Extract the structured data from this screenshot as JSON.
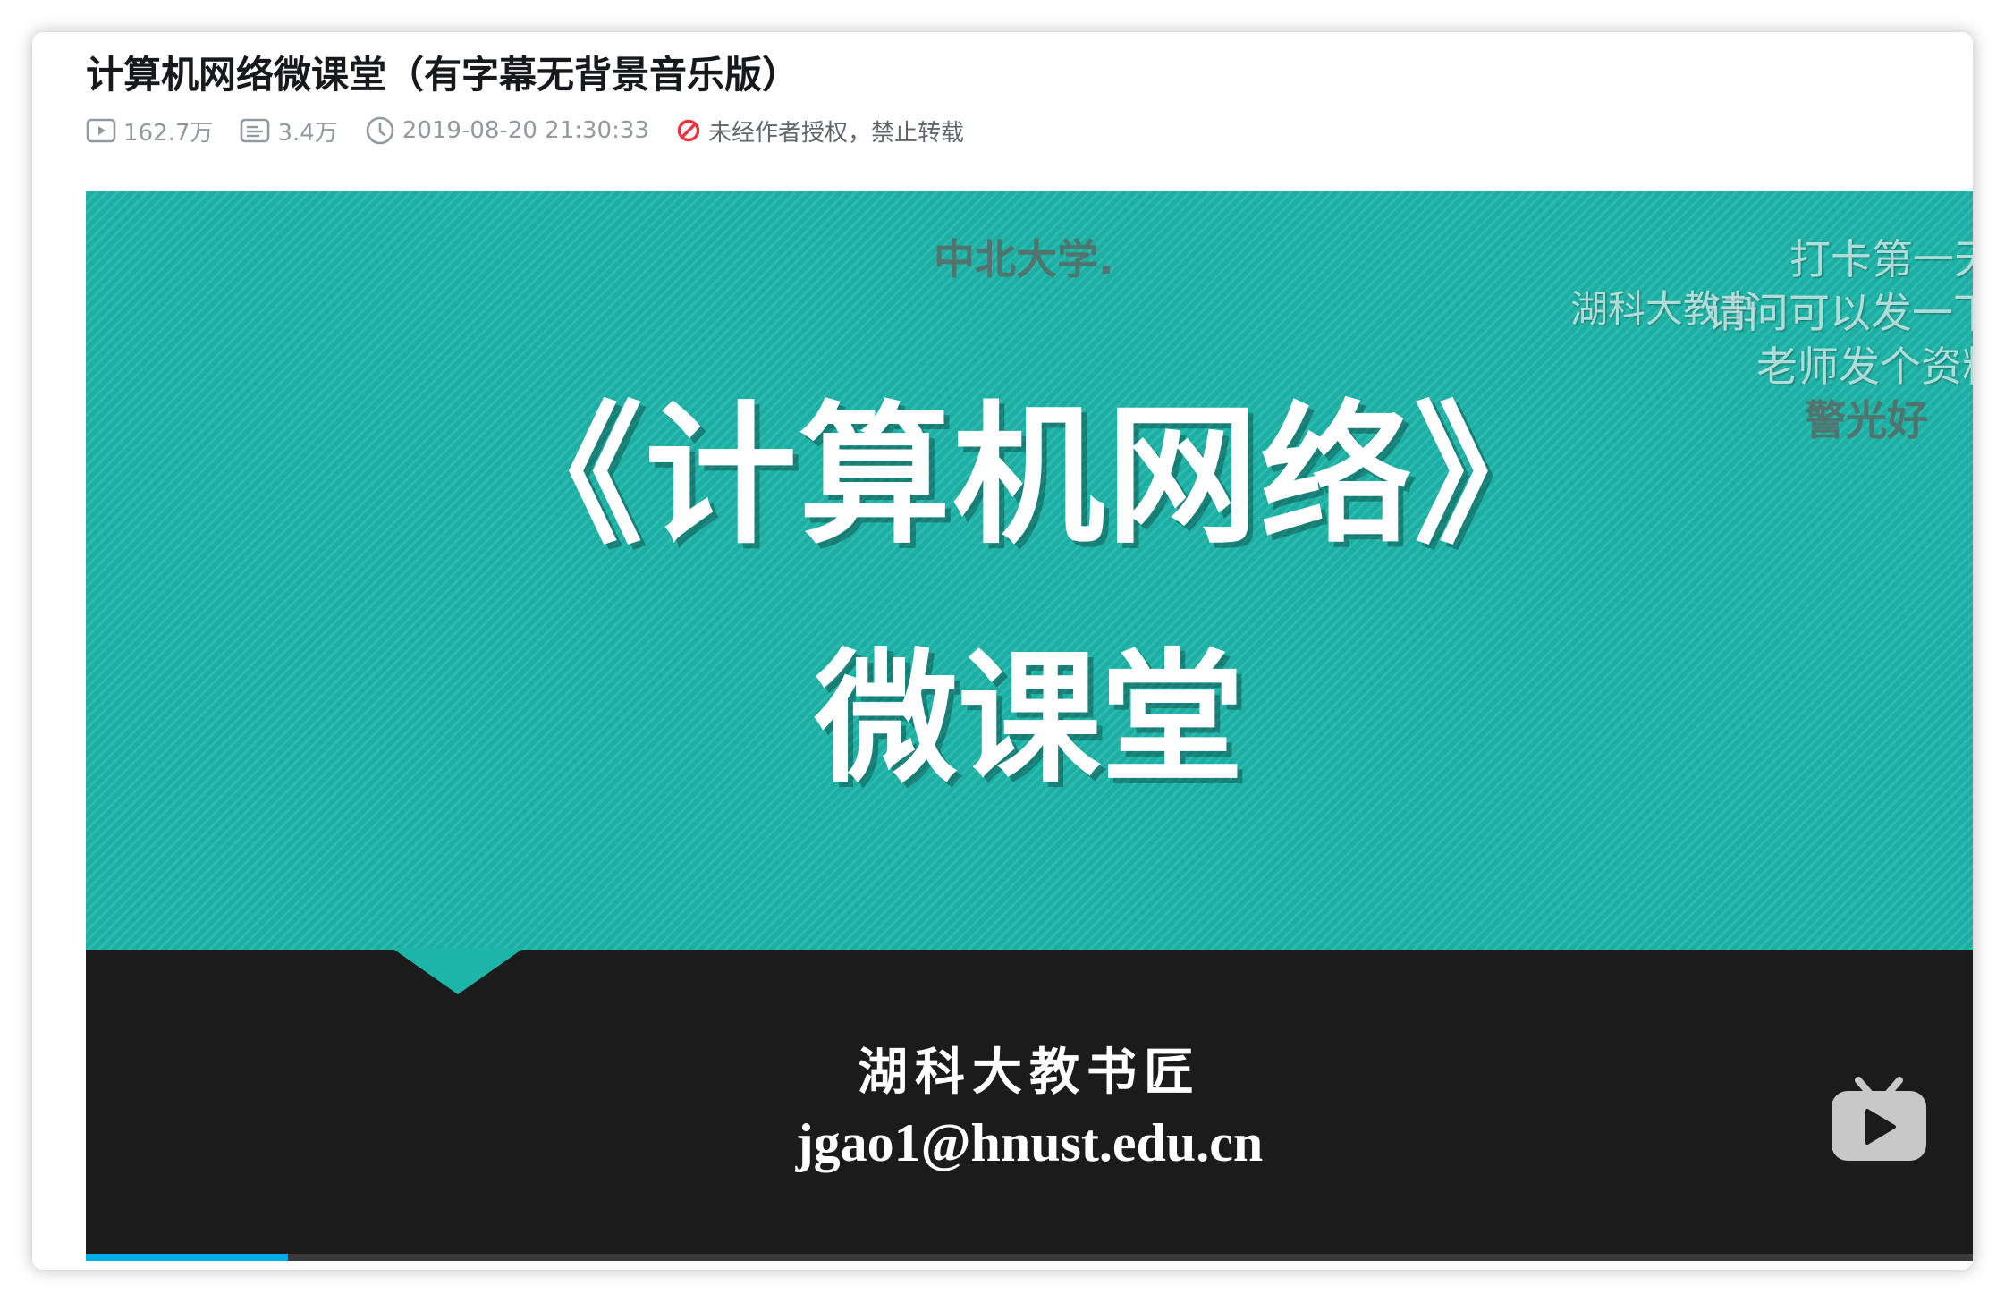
{
  "video": {
    "title": "计算机网络微课堂（有字幕无背景音乐版）",
    "stats": {
      "views": "162.7万",
      "danmaku_count": "3.4万",
      "published": "2019-08-20 21:30:33",
      "copyright_notice": "未经作者授权，禁止转载"
    }
  },
  "player": {
    "slide": {
      "main_title": "《计算机网络》",
      "sub_title": "微课堂",
      "author": "湖科大教书匠",
      "email": "jgao1@hnust.edu.cn"
    },
    "danmaku": [
      "中北大学.",
      "打卡第一天",
      "湖科大教书",
      "请问可以发一下",
      "老师发个资料",
      "警光好"
    ],
    "progress": 0.107,
    "accent_color": "#00aeec"
  },
  "icons": {
    "views": "play-count-icon",
    "danmaku": "danmaku-icon",
    "time": "clock-icon",
    "notice": "prohibited-icon",
    "logo": "bilibili-tv-logo-icon"
  }
}
